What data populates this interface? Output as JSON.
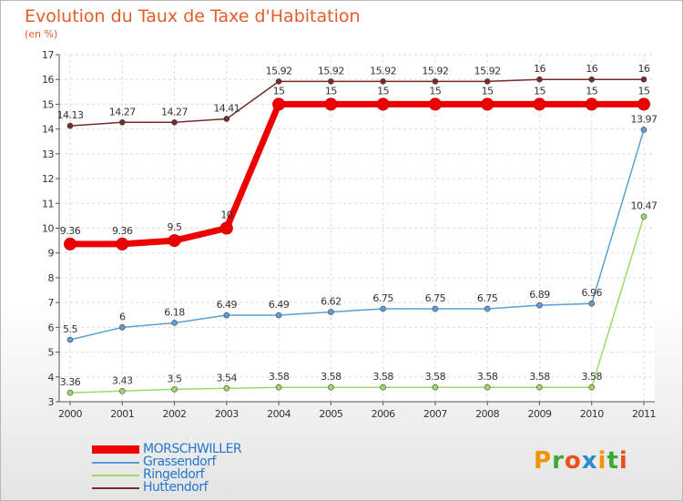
{
  "title": "Evolution du Taux de Taxe d'Habitation",
  "subtitle": "(en %)",
  "logo_text": "Proxiti",
  "chart_data": {
    "type": "line",
    "categories": [
      "2000",
      "2001",
      "2002",
      "2003",
      "2004",
      "2005",
      "2006",
      "2007",
      "2008",
      "2009",
      "2010",
      "2011"
    ],
    "ylim": [
      3,
      17
    ],
    "yticks": [
      3,
      4,
      5,
      6,
      7,
      8,
      9,
      10,
      11,
      12,
      13,
      14,
      15,
      16,
      17
    ],
    "grid": true,
    "legend_position": "bottom-left",
    "series": [
      {
        "name": "Huttendorf",
        "color": "#7a2a2a",
        "values": [
          14.13,
          14.27,
          14.27,
          14.41,
          15.92,
          15.92,
          15.92,
          15.92,
          15.92,
          16,
          16,
          16
        ],
        "labels": [
          "14.13",
          "14.27",
          "14.27",
          "14.41",
          "15.92",
          "15.92",
          "15.92",
          "15.92",
          "15.92",
          "16",
          "16",
          "16"
        ]
      },
      {
        "name": "Grassendorf",
        "color": "#5b9fd6",
        "values": [
          5.5,
          6,
          6.18,
          6.49,
          6.49,
          6.62,
          6.75,
          6.75,
          6.75,
          6.89,
          6.96,
          13.97
        ],
        "labels": [
          "5.5",
          "6",
          "6.18",
          "6.49",
          "6.49",
          "6.62",
          "6.75",
          "6.75",
          "6.75",
          "6.89",
          "6.96",
          "13.97"
        ]
      },
      {
        "name": "Ringeldorf",
        "color": "#99dd66",
        "values": [
          3.36,
          3.43,
          3.5,
          3.54,
          3.58,
          3.58,
          3.58,
          3.58,
          3.58,
          3.58,
          3.58,
          10.47
        ],
        "labels": [
          "3.36",
          "3.43",
          "3.5",
          "3.54",
          "3.58",
          "3.58",
          "3.58",
          "3.58",
          "3.58",
          "3.58",
          "3.58",
          "10.47"
        ]
      },
      {
        "name": "MORSCHWILLER",
        "color": "#ee0000",
        "values": [
          9.36,
          9.36,
          9.5,
          10,
          15,
          15,
          15,
          15,
          15,
          15,
          15,
          15
        ],
        "labels": [
          "9.36",
          "9.36",
          "9.5",
          "10",
          "15",
          "15",
          "15",
          "15",
          "15",
          "15",
          "15",
          "15"
        ]
      }
    ],
    "legend_order": [
      "MORSCHWILLER",
      "Grassendorf",
      "Ringeldorf",
      "Huttendorf"
    ]
  }
}
